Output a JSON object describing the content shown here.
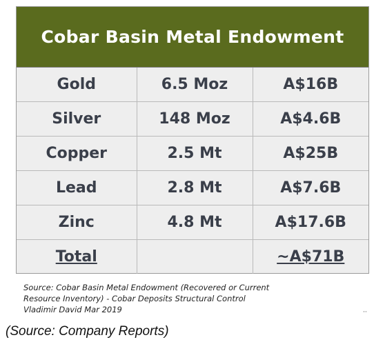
{
  "table": {
    "title": "Cobar Basin Metal Endowment",
    "rows": [
      {
        "metal": "Gold",
        "quantity": "6.5 Moz",
        "value": "A$16B"
      },
      {
        "metal": "Silver",
        "quantity": "148 Moz",
        "value": "A$4.6B"
      },
      {
        "metal": "Copper",
        "quantity": "2.5 Mt",
        "value": "A$25B"
      },
      {
        "metal": "Lead",
        "quantity": "2.8 Mt",
        "value": "A$7.6B"
      },
      {
        "metal": "Zinc",
        "quantity": "4.8 Mt",
        "value": "A$17.6B"
      }
    ],
    "total": {
      "label": "Total",
      "quantity": "",
      "value": "~A$71B"
    }
  },
  "source_note": {
    "line1": "Source: Cobar Basin Metal Endowment (Recovered or Current",
    "line2": "Resource Inventory) - Cobar Deposits Structural Control",
    "line3": "Vladimir David Mar 2019"
  },
  "caption": "(Source: Company Reports)",
  "colors": {
    "header_bg": "#5a6b1e",
    "header_text": "#ffffff",
    "cell_bg": "#eeeeee",
    "cell_text": "#3a3f4a"
  }
}
